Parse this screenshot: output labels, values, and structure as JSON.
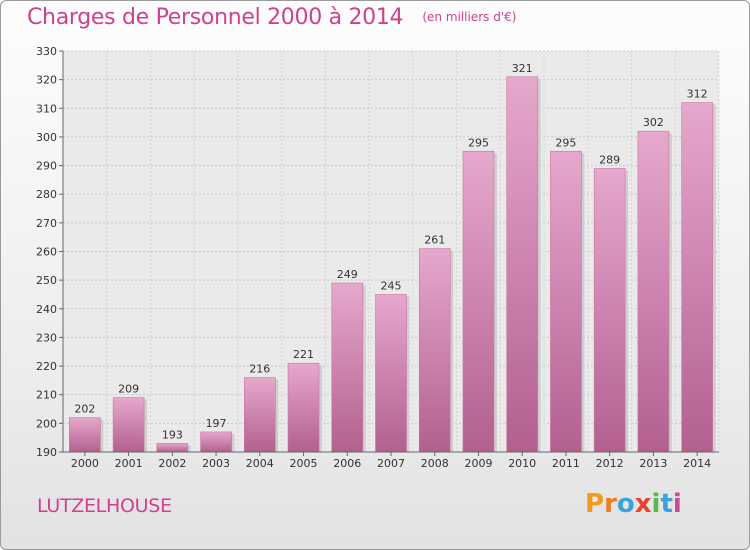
{
  "header": {
    "title": "Charges de Personnel 2000 à 2014",
    "subtitle": "(en milliers d'€)"
  },
  "footer": {
    "commune": "LUTZELHOUSE",
    "logo": "Proxiti",
    "logo_colors": [
      "#f29a1c",
      "#ee7d1e",
      "#3aa3dc",
      "#e8432a",
      "#5cb848",
      "#3aa3dc",
      "#c64a9a"
    ]
  },
  "colors": {
    "accent": "#d0408e",
    "bar_top": "#e6a8cd",
    "bar_bottom": "#b3608f"
  },
  "chart_data": {
    "type": "bar",
    "title": "Charges de Personnel 2000 à 2014",
    "subtitle": "(en milliers d'€)",
    "xlabel": "",
    "ylabel": "",
    "categories": [
      "2000",
      "2001",
      "2002",
      "2003",
      "2004",
      "2005",
      "2006",
      "2007",
      "2008",
      "2009",
      "2010",
      "2011",
      "2012",
      "2013",
      "2014"
    ],
    "values": [
      202,
      209,
      193,
      197,
      216,
      221,
      249,
      245,
      261,
      295,
      321,
      295,
      289,
      302,
      312
    ],
    "ylim": [
      190,
      330
    ],
    "yticks": [
      190,
      200,
      210,
      220,
      230,
      240,
      250,
      260,
      270,
      280,
      290,
      300,
      310,
      320,
      330
    ],
    "grid": true,
    "legend": "none"
  }
}
